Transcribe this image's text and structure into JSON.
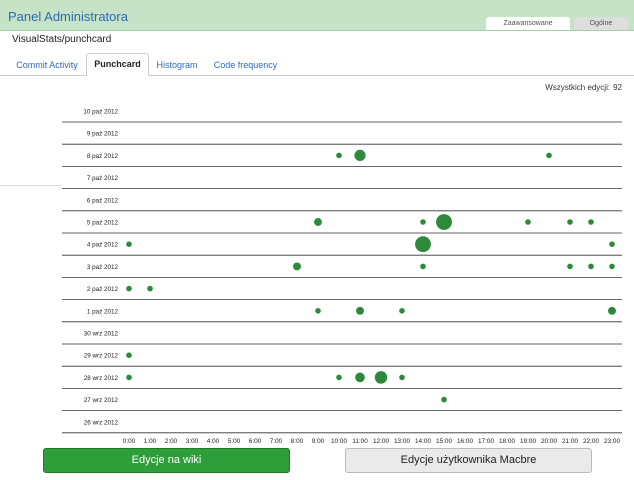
{
  "app": {
    "title": "Panel Administratora"
  },
  "top_tabs": [
    {
      "label": "Zaawansowane",
      "active": true
    },
    {
      "label": "Ogólne",
      "active": false
    }
  ],
  "breadcrumb": "VisualStats/punchcard",
  "tabs": [
    {
      "label": "Commit Activity",
      "active": false
    },
    {
      "label": "Punchcard",
      "active": true
    },
    {
      "label": "Histogram",
      "active": false
    },
    {
      "label": "Code frequency",
      "active": false
    }
  ],
  "total": {
    "label": "Wszystkich edycji:",
    "value": "92"
  },
  "buttons": {
    "wiki": "Edycje na wiki",
    "user": "Edycje użytkownika Macbre"
  },
  "colors": {
    "accent": "#2e6ab5",
    "dot": "#2d8a3a",
    "header": "#c6e3c7",
    "primary_button": "#2e9e3a"
  },
  "chart_data": {
    "type": "scatter",
    "x_hours": [
      "0:00",
      "1:00",
      "2:00",
      "3:00",
      "4:00",
      "5:00",
      "6:00",
      "7:00",
      "8:00",
      "9:00",
      "10:00",
      "11:00",
      "12:00",
      "13:00",
      "14:00",
      "15:00",
      "16:00",
      "17:00",
      "18:00",
      "19:00",
      "20:00",
      "21:00",
      "22:00",
      "23:00"
    ],
    "rows": [
      {
        "date": "10 paź 2012",
        "points": []
      },
      {
        "date": "9 paź 2012",
        "points": []
      },
      {
        "date": "8 paź 2012",
        "points": [
          {
            "hour": 10,
            "count": 1
          },
          {
            "hour": 11,
            "count": 4
          },
          {
            "hour": 20,
            "count": 1
          }
        ]
      },
      {
        "date": "7 paź 2012",
        "points": []
      },
      {
        "date": "6 paź 2012",
        "points": []
      },
      {
        "date": "5 paź 2012",
        "points": [
          {
            "hour": 9,
            "count": 2
          },
          {
            "hour": 14,
            "count": 1
          },
          {
            "hour": 15,
            "count": 8
          },
          {
            "hour": 19,
            "count": 1
          },
          {
            "hour": 21,
            "count": 1
          },
          {
            "hour": 22,
            "count": 1
          }
        ]
      },
      {
        "date": "4 paź 2012",
        "points": [
          {
            "hour": 0,
            "count": 1
          },
          {
            "hour": 14,
            "count": 8
          },
          {
            "hour": 23,
            "count": 1
          }
        ]
      },
      {
        "date": "3 paź 2012",
        "points": [
          {
            "hour": 8,
            "count": 2
          },
          {
            "hour": 14,
            "count": 1
          },
          {
            "hour": 21,
            "count": 1
          },
          {
            "hour": 22,
            "count": 1
          },
          {
            "hour": 23,
            "count": 1
          }
        ]
      },
      {
        "date": "2 paź 2012",
        "points": [
          {
            "hour": 0,
            "count": 1
          },
          {
            "hour": 1,
            "count": 1
          }
        ]
      },
      {
        "date": "1 paź 2012",
        "points": [
          {
            "hour": 9,
            "count": 1
          },
          {
            "hour": 11,
            "count": 2
          },
          {
            "hour": 13,
            "count": 1
          },
          {
            "hour": 23,
            "count": 2
          }
        ]
      },
      {
        "date": "30 wrz 2012",
        "points": []
      },
      {
        "date": "29 wrz 2012",
        "points": [
          {
            "hour": 0,
            "count": 1
          }
        ]
      },
      {
        "date": "28 wrz 2012",
        "points": [
          {
            "hour": 0,
            "count": 1
          },
          {
            "hour": 10,
            "count": 1
          },
          {
            "hour": 11,
            "count": 3
          },
          {
            "hour": 12,
            "count": 5
          },
          {
            "hour": 13,
            "count": 1
          }
        ]
      },
      {
        "date": "27 wrz 2012",
        "points": [
          {
            "hour": 15,
            "count": 1
          }
        ]
      },
      {
        "date": "26 wrz 2012",
        "points": []
      }
    ]
  }
}
